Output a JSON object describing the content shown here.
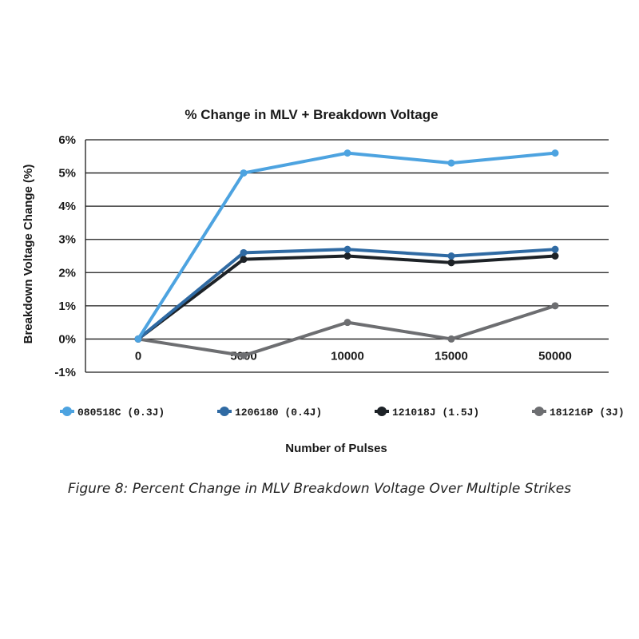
{
  "figure": {
    "caption": "Figure 8: Percent Change in MLV Breakdown Voltage Over Multiple Strikes"
  },
  "chart_data": {
    "type": "line",
    "title": "% Change in MLV + Breakdown Voltage",
    "xlabel": "Number of Pulses",
    "ylabel": "Breakdown Voltage Change (%)",
    "categories": [
      "0",
      "5000",
      "10000",
      "15000",
      "50000"
    ],
    "y_ticks": [
      6,
      5,
      4,
      3,
      2,
      1,
      0,
      -1
    ],
    "y_tick_labels": [
      "6%",
      "5%",
      "4%",
      "3%",
      "2%",
      "1%",
      "0%",
      "-1%"
    ],
    "ylim": [
      -1,
      6
    ],
    "grid": "horizontal",
    "legend_position": "bottom",
    "series": [
      {
        "name": "080518C (0.3J)",
        "color": "#4da3e0",
        "values": [
          0,
          5.0,
          5.6,
          5.3,
          5.6
        ]
      },
      {
        "name": "1206180 (0.4J)",
        "color": "#2f6aa3",
        "values": [
          0,
          2.6,
          2.7,
          2.5,
          2.7
        ]
      },
      {
        "name": "121018J (1.5J)",
        "color": "#1d2227",
        "values": [
          0,
          2.4,
          2.5,
          2.3,
          2.5
        ]
      },
      {
        "name": "181216P (3J)",
        "color": "#6d6e71",
        "values": [
          0,
          -0.5,
          0.5,
          0,
          1.0
        ]
      }
    ]
  }
}
